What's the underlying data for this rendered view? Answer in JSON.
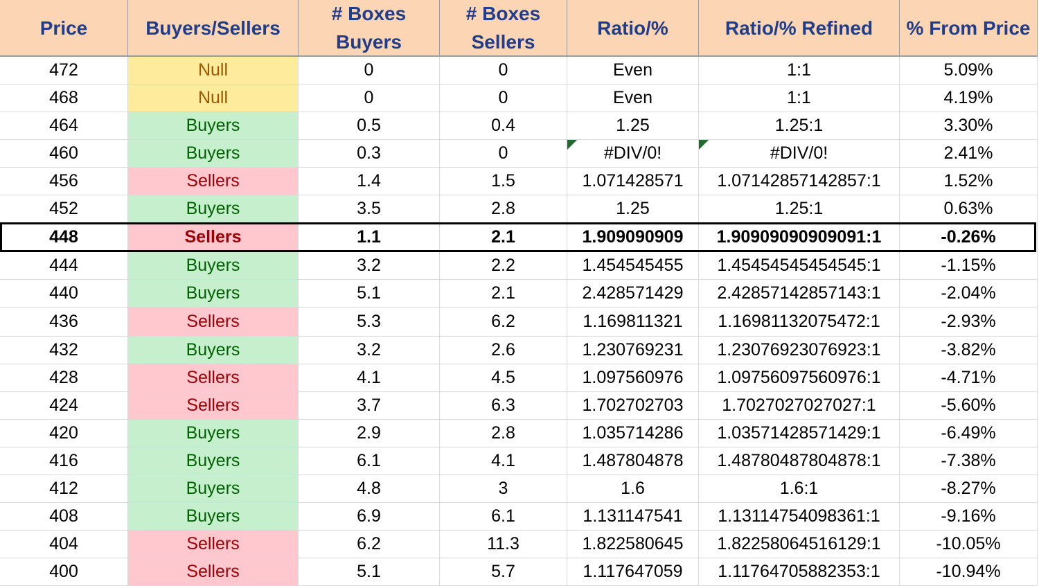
{
  "columns": [
    "Price",
    "Buyers/Sellers",
    "# Boxes Buyers",
    "# Boxes\nSellers",
    "Ratio/%",
    "Ratio/% Refined",
    "% From Price"
  ],
  "colors": {
    "header_bg": "#fcd5b4",
    "header_text": "#1f3d8a",
    "null_bg": "#ffeb9c",
    "null_text": "#9c5700",
    "buyers_bg": "#c6efce",
    "buyers_text": "#006100",
    "sellers_bg": "#ffc7ce",
    "sellers_text": "#9c0006",
    "error_indicator": "#1e6b2e"
  },
  "highlighted_price": "448",
  "rows": [
    {
      "price": "472",
      "status": "Null",
      "buyers": "0",
      "sellers": "0",
      "ratio": "Even",
      "refined": "1:1",
      "from_price": "5.09%"
    },
    {
      "price": "468",
      "status": "Null",
      "buyers": "0",
      "sellers": "0",
      "ratio": "Even",
      "refined": "1:1",
      "from_price": "4.19%"
    },
    {
      "price": "464",
      "status": "Buyers",
      "buyers": "0.5",
      "sellers": "0.4",
      "ratio": "1.25",
      "refined": "1.25:1",
      "from_price": "3.30%"
    },
    {
      "price": "460",
      "status": "Buyers",
      "buyers": "0.3",
      "sellers": "0",
      "ratio": "#DIV/0!",
      "refined": "#DIV/0!",
      "from_price": "2.41%",
      "error": true
    },
    {
      "price": "456",
      "status": "Sellers",
      "buyers": "1.4",
      "sellers": "1.5",
      "ratio": "1.071428571",
      "refined": "1.07142857142857:1",
      "from_price": "1.52%"
    },
    {
      "price": "452",
      "status": "Buyers",
      "buyers": "3.5",
      "sellers": "2.8",
      "ratio": "1.25",
      "refined": "1.25:1",
      "from_price": "0.63%"
    },
    {
      "price": "448",
      "status": "Sellers",
      "buyers": "1.1",
      "sellers": "2.1",
      "ratio": "1.909090909",
      "refined": "1.90909090909091:1",
      "from_price": "-0.26%",
      "highlight": true
    },
    {
      "price": "444",
      "status": "Buyers",
      "buyers": "3.2",
      "sellers": "2.2",
      "ratio": "1.454545455",
      "refined": "1.45454545454545:1",
      "from_price": "-1.15%"
    },
    {
      "price": "440",
      "status": "Buyers",
      "buyers": "5.1",
      "sellers": "2.1",
      "ratio": "2.428571429",
      "refined": "2.42857142857143:1",
      "from_price": "-2.04%"
    },
    {
      "price": "436",
      "status": "Sellers",
      "buyers": "5.3",
      "sellers": "6.2",
      "ratio": "1.169811321",
      "refined": "1.16981132075472:1",
      "from_price": "-2.93%"
    },
    {
      "price": "432",
      "status": "Buyers",
      "buyers": "3.2",
      "sellers": "2.6",
      "ratio": "1.230769231",
      "refined": "1.23076923076923:1",
      "from_price": "-3.82%"
    },
    {
      "price": "428",
      "status": "Sellers",
      "buyers": "4.1",
      "sellers": "4.5",
      "ratio": "1.097560976",
      "refined": "1.09756097560976:1",
      "from_price": "-4.71%"
    },
    {
      "price": "424",
      "status": "Sellers",
      "buyers": "3.7",
      "sellers": "6.3",
      "ratio": "1.702702703",
      "refined": "1.7027027027027:1",
      "from_price": "-5.60%"
    },
    {
      "price": "420",
      "status": "Buyers",
      "buyers": "2.9",
      "sellers": "2.8",
      "ratio": "1.035714286",
      "refined": "1.03571428571429:1",
      "from_price": "-6.49%"
    },
    {
      "price": "416",
      "status": "Buyers",
      "buyers": "6.1",
      "sellers": "4.1",
      "ratio": "1.487804878",
      "refined": "1.48780487804878:1",
      "from_price": "-7.38%"
    },
    {
      "price": "412",
      "status": "Buyers",
      "buyers": "4.8",
      "sellers": "3",
      "ratio": "1.6",
      "refined": "1.6:1",
      "from_price": "-8.27%"
    },
    {
      "price": "408",
      "status": "Buyers",
      "buyers": "6.9",
      "sellers": "6.1",
      "ratio": "1.131147541",
      "refined": "1.13114754098361:1",
      "from_price": "-9.16%"
    },
    {
      "price": "404",
      "status": "Sellers",
      "buyers": "6.2",
      "sellers": "11.3",
      "ratio": "1.822580645",
      "refined": "1.82258064516129:1",
      "from_price": "-10.05%"
    },
    {
      "price": "400",
      "status": "Sellers",
      "buyers": "5.1",
      "sellers": "5.7",
      "ratio": "1.117647059",
      "refined": "1.11764705882353:1",
      "from_price": "-10.94%"
    }
  ]
}
